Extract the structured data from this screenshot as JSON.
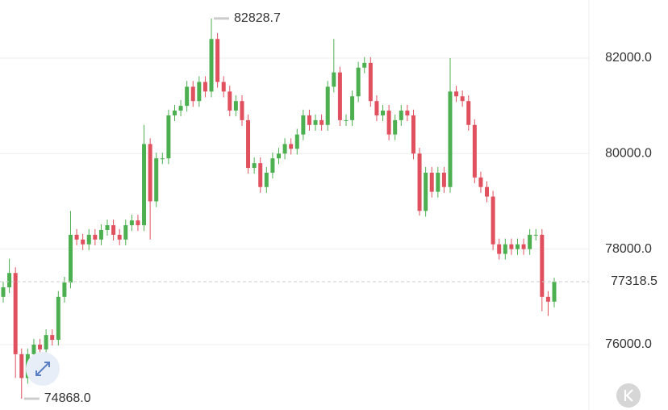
{
  "chart_data": {
    "type": "candlestick",
    "up_color": "#4caf50",
    "down_color": "#e0505e",
    "grid": true,
    "ylim": [
      74631,
      83216
    ],
    "yticks": [
      {
        "value": 76000,
        "label": "76000.0"
      },
      {
        "value": 78000,
        "label": "78000.0"
      },
      {
        "value": 80000,
        "label": "80000.0"
      },
      {
        "value": 82000,
        "label": "82000.0"
      }
    ],
    "high_marker": 82828.7,
    "low_marker": {
      "value": 74868,
      "label": "74868.0"
    },
    "last_price": 77318.5,
    "open": [
      77000,
      77200,
      77500,
      75800,
      75300,
      75800,
      76000,
      75900,
      76200,
      76100,
      77000,
      77300,
      78300,
      78200,
      78100,
      78300,
      78200,
      78400,
      78500,
      78300,
      78200,
      78500,
      78600,
      78500,
      80200,
      79000,
      79900,
      79900,
      80800,
      80900,
      81000,
      81400,
      81100,
      81500,
      81300,
      82400,
      81500,
      81300,
      80900,
      81100,
      80700,
      79700,
      79800,
      79300,
      79600,
      79900,
      80000,
      80200,
      80100,
      80400,
      80800,
      80600,
      80700,
      80600,
      81400,
      81700,
      80700,
      80700,
      81200,
      81800,
      81900,
      81100,
      80800,
      80900,
      80400,
      80700,
      80900,
      80800,
      80000,
      78800,
      79600,
      79200,
      79600,
      79300,
      81300,
      81200,
      81100,
      80600,
      79500,
      79300,
      79100,
      78100,
      77900,
      78100,
      78000,
      78100,
      78000,
      78300,
      78300,
      77000,
      76900
    ],
    "high": [
      77320,
      77800,
      77620,
      75920,
      75920,
      76120,
      76120,
      76320,
      76320,
      77120,
      77420,
      78800,
      78420,
      78320,
      78420,
      78420,
      78520,
      78620,
      78620,
      78420,
      78620,
      78720,
      78720,
      80600,
      80320,
      80020,
      80020,
      80920,
      81020,
      81120,
      81520,
      81520,
      81620,
      81620,
      82828.7,
      82520,
      81620,
      81420,
      81220,
      81220,
      80820,
      79920,
      79920,
      79720,
      80020,
      80120,
      80320,
      80320,
      80520,
      80920,
      80920,
      80820,
      80820,
      81520,
      82400,
      81820,
      80820,
      81320,
      81920,
      82020,
      82020,
      81220,
      81020,
      81020,
      80820,
      81020,
      81020,
      80920,
      80120,
      79720,
      79720,
      79720,
      79720,
      82000,
      81420,
      81320,
      81220,
      80720,
      79620,
      79420,
      79220,
      78220,
      78220,
      78220,
      78220,
      78220,
      78420,
      78420,
      78420,
      77120,
      77400
    ],
    "low": [
      76880,
      77080,
      75300,
      74868,
      75180,
      75680,
      75780,
      75780,
      75980,
      75980,
      76880,
      77180,
      78080,
      77980,
      77980,
      78080,
      78080,
      78280,
      78180,
      78080,
      78080,
      78380,
      78380,
      78380,
      78200,
      78880,
      79780,
      79780,
      80680,
      80780,
      80880,
      80980,
      80980,
      81180,
      81180,
      81380,
      81180,
      80780,
      80780,
      80580,
      79580,
      79580,
      79180,
      79180,
      79480,
      79780,
      79880,
      79980,
      79980,
      80280,
      80480,
      80480,
      80480,
      80480,
      81280,
      80580,
      80580,
      80580,
      81080,
      81680,
      80980,
      80680,
      80680,
      80280,
      80280,
      80580,
      80680,
      79880,
      78700,
      78680,
      79080,
      79080,
      79180,
      79180,
      81080,
      80980,
      80480,
      79380,
      79180,
      78980,
      77980,
      77780,
      77780,
      77880,
      77880,
      77880,
      77880,
      78180,
      76700,
      76600,
      76780
    ],
    "close": [
      77200,
      77500,
      75800,
      75300,
      75800,
      76000,
      75900,
      76200,
      76100,
      77000,
      77300,
      78300,
      78200,
      78100,
      78300,
      78200,
      78400,
      78500,
      78300,
      78200,
      78500,
      78600,
      78500,
      80200,
      79000,
      79900,
      79900,
      80800,
      80900,
      81000,
      81400,
      81100,
      81500,
      81300,
      82400,
      81500,
      81300,
      80900,
      81100,
      80700,
      79700,
      79800,
      79300,
      79600,
      79900,
      80000,
      80200,
      80100,
      80400,
      80800,
      80600,
      80700,
      80600,
      81400,
      81700,
      80700,
      80700,
      81200,
      81800,
      81900,
      81100,
      80800,
      80900,
      80400,
      80700,
      80900,
      80800,
      80000,
      78800,
      79600,
      79200,
      79600,
      79300,
      81300,
      81200,
      81100,
      80600,
      79500,
      79300,
      79100,
      78100,
      77900,
      78100,
      78000,
      78100,
      78000,
      78300,
      78300,
      77000,
      76900,
      77318.5
    ]
  }
}
